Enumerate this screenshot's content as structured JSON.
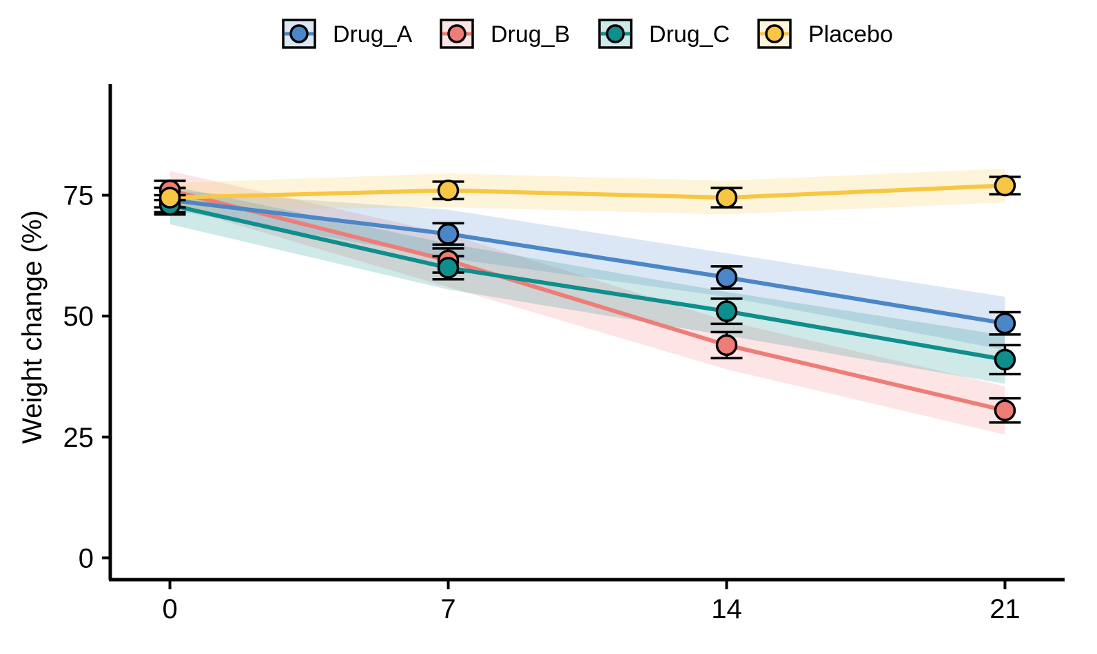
{
  "chart_data": {
    "type": "line",
    "title": "",
    "xlabel": "",
    "ylabel": "Weight change (%)",
    "x": [
      0,
      7,
      14,
      21
    ],
    "x_ticks": [
      0,
      7,
      14,
      21
    ],
    "y_ticks": [
      0,
      25,
      50,
      75
    ],
    "xlim": [
      -1.5,
      22.5
    ],
    "ylim": [
      -4.5,
      98
    ],
    "grid": false,
    "legend": "top",
    "series": [
      {
        "name": "Drug_A",
        "color": "#4A86C8",
        "values": [
          74,
          67,
          58,
          48.5
        ],
        "error": [
          2.5,
          2.2,
          2.3,
          2.3
        ],
        "band_lower": [
          72,
          62,
          54,
          43
        ],
        "band_upper": [
          76,
          72,
          63,
          54
        ]
      },
      {
        "name": "Drug_B",
        "color": "#EE7D78",
        "values": [
          76,
          61.5,
          44,
          30.5
        ],
        "error": [
          2.0,
          2.5,
          2.7,
          2.5
        ],
        "band_lower": [
          73,
          56,
          39,
          25.5
        ],
        "band_upper": [
          80,
          67,
          49,
          35.5
        ]
      },
      {
        "name": "Drug_C",
        "color": "#0E8E8C",
        "values": [
          73,
          60,
          51,
          41
        ],
        "error": [
          2.0,
          2.4,
          2.6,
          3.0
        ],
        "band_lower": [
          69,
          55.5,
          46,
          36
        ],
        "band_upper": [
          77,
          65,
          55,
          46
        ]
      },
      {
        "name": "Placebo",
        "color": "#F7C744",
        "values": [
          74.5,
          76,
          74.5,
          77
        ],
        "error": [
          2.0,
          1.8,
          2.0,
          1.8
        ],
        "band_lower": [
          72,
          72.5,
          71,
          73.5
        ],
        "band_upper": [
          77.5,
          79.5,
          78,
          80.5
        ]
      }
    ]
  }
}
